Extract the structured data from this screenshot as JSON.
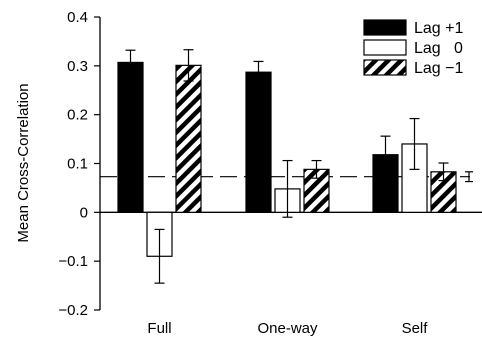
{
  "chart_data": {
    "type": "bar",
    "title": "",
    "ylabel": "Mean Cross-Correlation",
    "xlabel": "",
    "ylim": [
      -0.2,
      0.4
    ],
    "yticks": [
      -0.2,
      -0.1,
      0,
      0.1,
      0.2,
      0.3,
      0.4
    ],
    "ytick_labels": [
      "−0.2",
      "−0.1",
      "0",
      "0.1",
      "0.2",
      "0.3",
      "0.4"
    ],
    "categories": [
      "Full",
      "One-way",
      "Self"
    ],
    "series": [
      {
        "name": "Lag +1",
        "style": "solid",
        "values": [
          0.307,
          0.287,
          0.118
        ],
        "errors": [
          0.025,
          0.022,
          0.038
        ]
      },
      {
        "name": "Lag   0",
        "style": "open",
        "values": [
          -0.09,
          0.048,
          0.14
        ],
        "errors": [
          0.055,
          0.058,
          0.052
        ]
      },
      {
        "name": "Lag −1",
        "style": "hatched",
        "values": [
          0.301,
          0.088,
          0.083
        ],
        "errors": [
          0.032,
          0.018,
          0.018
        ]
      }
    ],
    "reference_line": {
      "value": 0.073,
      "style": "dashed",
      "extra_marker_error": 0.01
    },
    "legend_position": "top-right",
    "grid": false
  }
}
